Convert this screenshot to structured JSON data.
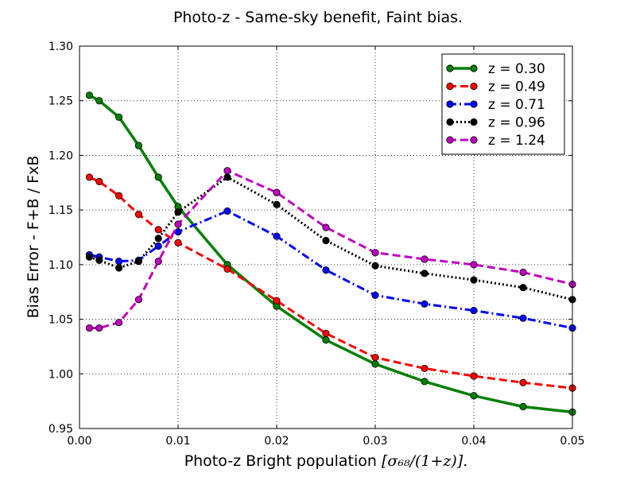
{
  "chart_data": {
    "type": "line",
    "title": "Photo-z - Same-sky benefit, Faint bias.",
    "xlabel_prefix": "Photo-z Bright population ",
    "xlabel_math": "[σ₆₈/(1+z)].",
    "ylabel": "Bias Error - F+B / FxB",
    "xlim": [
      0.0,
      0.05
    ],
    "ylim": [
      0.95,
      1.3
    ],
    "xticks": [
      0.0,
      0.01,
      0.02,
      0.03,
      0.04,
      0.05
    ],
    "xtick_labels": [
      "0.00",
      "0.01",
      "0.02",
      "0.03",
      "0.04",
      "0.05"
    ],
    "yticks": [
      0.95,
      1.0,
      1.05,
      1.1,
      1.15,
      1.2,
      1.25,
      1.3
    ],
    "ytick_labels": [
      "0.95",
      "1.00",
      "1.05",
      "1.10",
      "1.15",
      "1.20",
      "1.25",
      "1.30"
    ],
    "grid": true,
    "legend_position": "top-right",
    "x": [
      0.001,
      0.002,
      0.004,
      0.006,
      0.008,
      0.01,
      0.015,
      0.02,
      0.025,
      0.03,
      0.035,
      0.04,
      0.045,
      0.05
    ],
    "series": [
      {
        "name": "z = 0.30",
        "color": "#008000",
        "style": "solid",
        "values": [
          1.255,
          1.25,
          1.235,
          1.209,
          1.18,
          1.153,
          1.1,
          1.062,
          1.031,
          1.009,
          0.993,
          0.98,
          0.97,
          0.965
        ]
      },
      {
        "name": "z = 0.49",
        "color": "#ff0000",
        "style": "dashed",
        "values": [
          1.18,
          1.176,
          1.163,
          1.146,
          1.132,
          1.12,
          1.096,
          1.067,
          1.037,
          1.015,
          1.005,
          0.998,
          0.992,
          0.987
        ]
      },
      {
        "name": "z = 0.71",
        "color": "#0000ff",
        "style": "dashdot",
        "values": [
          1.109,
          1.107,
          1.103,
          1.104,
          1.117,
          1.13,
          1.149,
          1.126,
          1.095,
          1.072,
          1.064,
          1.058,
          1.051,
          1.042
        ]
      },
      {
        "name": "z = 0.96",
        "color": "#000000",
        "style": "dotted",
        "values": [
          1.107,
          1.104,
          1.097,
          1.103,
          1.124,
          1.148,
          1.18,
          1.155,
          1.122,
          1.099,
          1.092,
          1.086,
          1.079,
          1.068
        ]
      },
      {
        "name": "z = 1.24",
        "color": "#bf00bf",
        "style": "dashed",
        "values": [
          1.042,
          1.042,
          1.047,
          1.068,
          1.103,
          1.137,
          1.186,
          1.166,
          1.134,
          1.111,
          1.105,
          1.1,
          1.093,
          1.082
        ]
      }
    ]
  }
}
